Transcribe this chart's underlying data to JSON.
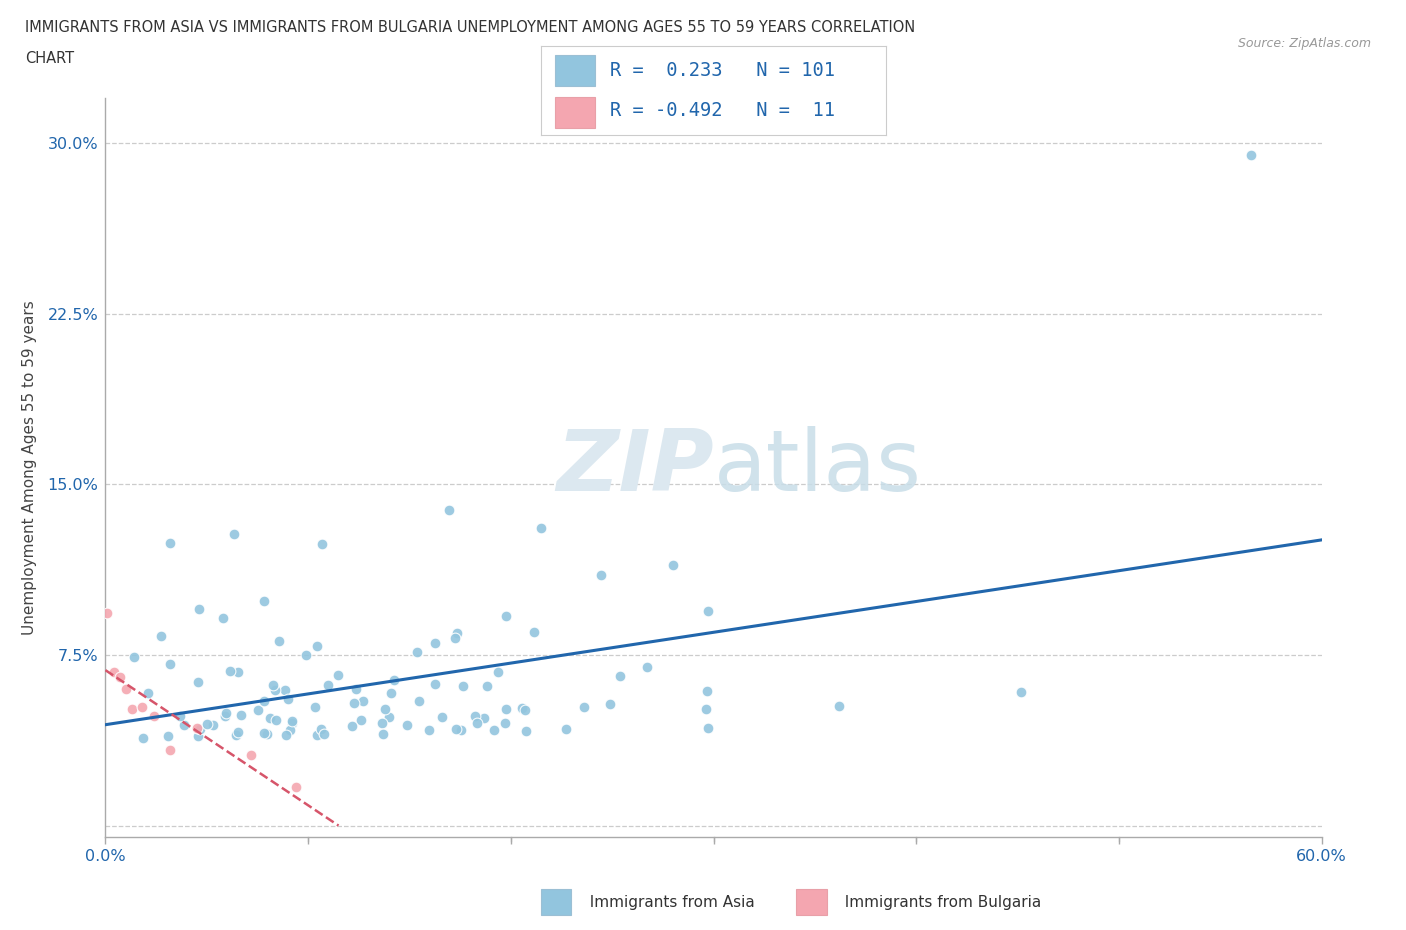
{
  "title_line1": "IMMIGRANTS FROM ASIA VS IMMIGRANTS FROM BULGARIA UNEMPLOYMENT AMONG AGES 55 TO 59 YEARS CORRELATION",
  "title_line2": "CHART",
  "source_text": "Source: ZipAtlas.com",
  "ylabel": "Unemployment Among Ages 55 to 59 years",
  "xlim": [
    0.0,
    0.6
  ],
  "ylim": [
    -0.005,
    0.32
  ],
  "yticks": [
    0.0,
    0.075,
    0.15,
    0.225,
    0.3
  ],
  "ytick_labels": [
    "",
    "7.5%",
    "15.0%",
    "22.5%",
    "30.0%"
  ],
  "xticks": [
    0.0,
    0.1,
    0.2,
    0.3,
    0.4,
    0.5,
    0.6
  ],
  "xtick_labels": [
    "0.0%",
    "",
    "",
    "",
    "",
    "",
    "60.0%"
  ],
  "asia_color": "#92c5de",
  "asia_line_color": "#2166ac",
  "bulgaria_color": "#f4a6b0",
  "bulgaria_line_color": "#d6556a",
  "background_color": "#ffffff",
  "watermark_color": "#dce8f0",
  "legend_R_asia": "0.233",
  "legend_N_asia": "101",
  "legend_R_bulgaria": "-0.492",
  "legend_N_bulgaria": "11",
  "legend_text_color": "#2166ac"
}
